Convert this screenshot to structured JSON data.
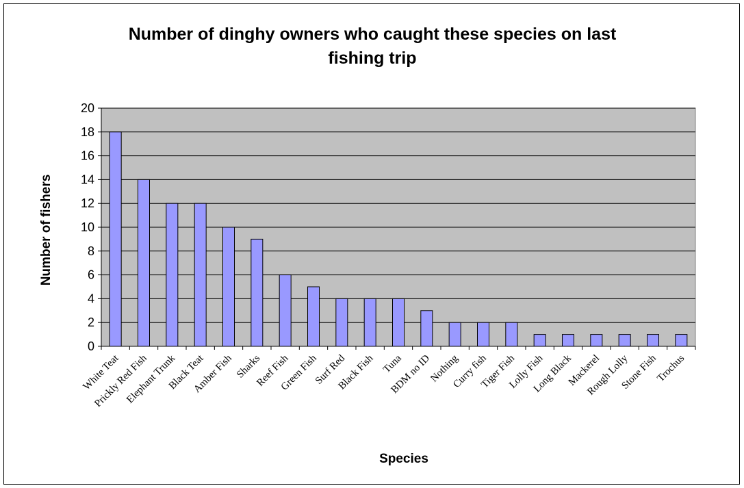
{
  "chart_data": {
    "type": "bar",
    "title": "Number of dinghy owners who caught these species on last fishing trip",
    "title_lines": [
      "Number of dinghy owners who caught these species on last",
      "fishing trip"
    ],
    "xlabel": "Species",
    "ylabel": "Number of fishers",
    "categories": [
      "White Teat",
      "Prickly Red Fish",
      "Elephant Trunk",
      "Black Teat",
      "Amber Fish",
      "Sharks",
      "Reef Fish",
      "Green Fish",
      "Surf Red",
      "Black Fish",
      "Tuna",
      "BDM no ID",
      "Nothing",
      "Curry fish",
      "Tiger Fish",
      "Lolly Fish",
      "Long Black",
      "Mackerel",
      "Rough Lolly",
      "Stone Fish",
      "Trochus"
    ],
    "values": [
      18,
      14,
      12,
      12,
      10,
      9,
      6,
      5,
      4,
      4,
      4,
      3,
      2,
      2,
      2,
      1,
      1,
      1,
      1,
      1,
      1
    ],
    "ylim": [
      0,
      20
    ],
    "yticks": [
      0,
      2,
      4,
      6,
      8,
      10,
      12,
      14,
      16,
      18,
      20
    ],
    "grid": true,
    "legend": "none",
    "colors": {
      "bar_fill": "#9999ff",
      "bar_stroke": "#000000",
      "plot_background": "#c0c0c0",
      "gridline": "#000000"
    }
  }
}
